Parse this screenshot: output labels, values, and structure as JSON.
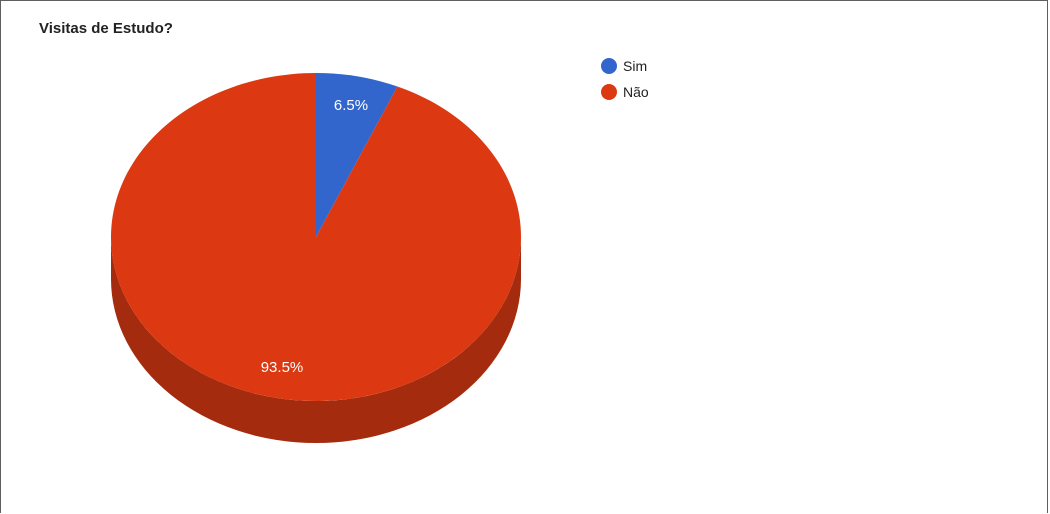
{
  "chart_data": {
    "type": "pie",
    "title": "Visitas de Estudo?",
    "legend_position": "right",
    "three_d": true,
    "slices": [
      {
        "label": "Sim",
        "value": 6.5,
        "value_label": "6.5%",
        "color": "#3366cc",
        "side_color": "#264d99"
      },
      {
        "label": "Não",
        "value": 93.5,
        "value_label": "93.5%",
        "color": "#dc3912",
        "side_color": "#a52b0e"
      }
    ]
  }
}
